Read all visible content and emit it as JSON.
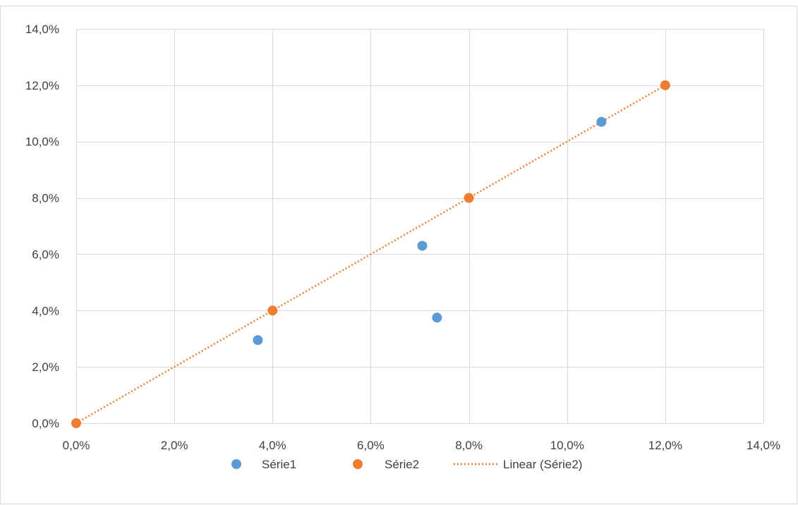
{
  "chart_data": {
    "type": "scatter",
    "xlim": [
      0,
      14
    ],
    "ylim": [
      0,
      14
    ],
    "x_ticks": [
      "0,0%",
      "2,0%",
      "4,0%",
      "6,0%",
      "8,0%",
      "10,0%",
      "12,0%",
      "14,0%"
    ],
    "y_ticks": [
      "0,0%",
      "2,0%",
      "4,0%",
      "6,0%",
      "8,0%",
      "10,0%",
      "12,0%",
      "14,0%"
    ],
    "tick_values": [
      0,
      2,
      4,
      6,
      8,
      10,
      12,
      14
    ],
    "grid": true,
    "legend_position": "bottom",
    "series": [
      {
        "name": "Série1",
        "color": "#5B9BD5",
        "points": [
          {
            "x": 3.7,
            "y": 2.95
          },
          {
            "x": 7.05,
            "y": 6.3
          },
          {
            "x": 7.35,
            "y": 3.75
          },
          {
            "x": 10.7,
            "y": 10.7
          }
        ]
      },
      {
        "name": "Série2",
        "color": "#ED7D31",
        "points": [
          {
            "x": 0,
            "y": 0
          },
          {
            "x": 4,
            "y": 4
          },
          {
            "x": 8,
            "y": 8
          },
          {
            "x": 12,
            "y": 12
          }
        ]
      }
    ],
    "trendline": {
      "name": "Linear (Série2)",
      "color": "#ED7D31",
      "style": "dotted",
      "from": {
        "x": 0,
        "y": 0
      },
      "to": {
        "x": 12,
        "y": 12
      }
    }
  }
}
